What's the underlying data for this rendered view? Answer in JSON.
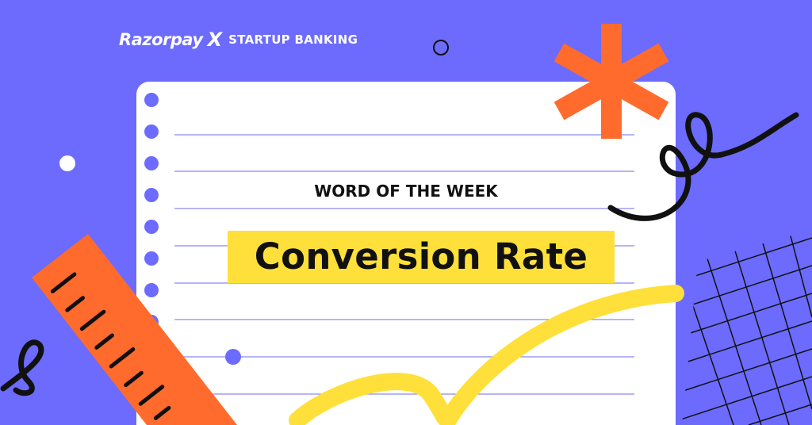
{
  "logo": {
    "brand": "Razorpay",
    "brand_mark": "X",
    "tagline": "STARTUP BANKING"
  },
  "heading": "WORD OF THE WEEK",
  "term": "Conversion Rate",
  "colors": {
    "background": "#6c6bfe",
    "paper": "#ffffff",
    "highlight": "#ffe03a",
    "accent_orange": "#ff6b2c",
    "lines": "#8a89f0",
    "ink": "#111111"
  }
}
